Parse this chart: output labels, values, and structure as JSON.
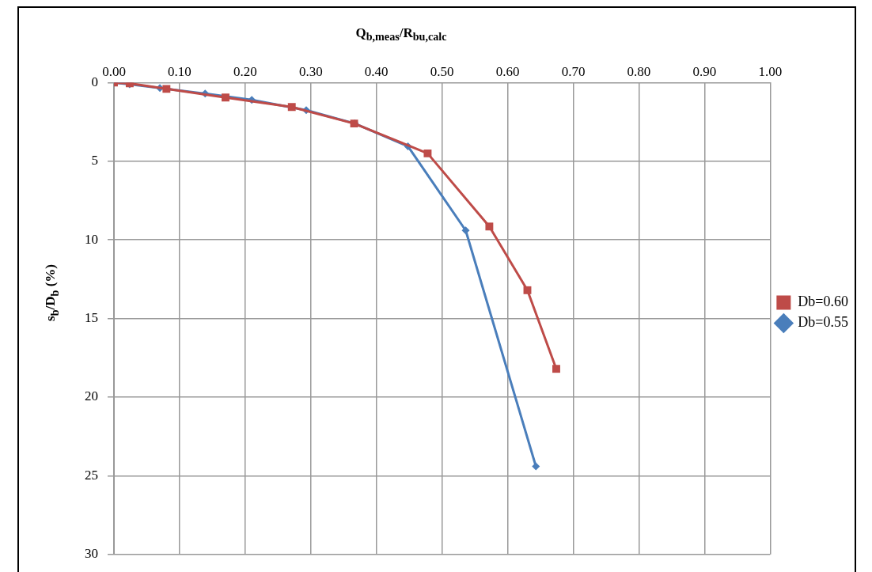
{
  "chart_data": {
    "type": "line",
    "xlabel": "Q$_{b,meas}$/R$_{bu,calc}$",
    "ylabel": "s$_{b}$/D$_{b}$ (%)",
    "xlim": [
      0,
      1
    ],
    "xticks": [
      {
        "value": 0,
        "label": "0.00"
      },
      {
        "value": 0.1,
        "label": "0.10"
      },
      {
        "value": 0.2,
        "label": "0.20"
      },
      {
        "value": 0.3,
        "label": "0.30"
      },
      {
        "value": 0.4,
        "label": "0.40"
      },
      {
        "value": 0.5,
        "label": "0.50"
      },
      {
        "value": 0.6,
        "label": "0.60"
      },
      {
        "value": 0.7,
        "label": "0.70"
      },
      {
        "value": 0.8,
        "label": "0.80"
      },
      {
        "value": 0.9,
        "label": "0.90"
      },
      {
        "value": 1,
        "label": "1.00"
      }
    ],
    "ylim": [
      30,
      0
    ],
    "yticks": [
      0,
      5,
      10,
      15,
      20,
      25,
      30
    ],
    "grid": true,
    "legend": "right",
    "line_style": "solid",
    "series": [
      {
        "name": "Db=0.55",
        "color": "#4a7ebb",
        "marker": "diamond",
        "x": [
          0,
          0.024,
          0.07,
          0.139,
          0.21,
          0.293,
          0.367,
          0.448,
          0.536,
          0.643
        ],
        "values": [
          0,
          0.1,
          0.35,
          0.7,
          1.1,
          1.75,
          2.6,
          4.05,
          9.4,
          24.4
        ]
      },
      {
        "name": "Db=0.60",
        "color": "#be4b48",
        "marker": "square",
        "x": [
          0,
          0.024,
          0.08,
          0.17,
          0.271,
          0.366,
          0.478,
          0.572,
          0.63,
          0.674
        ],
        "values": [
          0,
          0.05,
          0.4,
          0.95,
          1.55,
          2.6,
          4.5,
          9.15,
          13.2,
          18.2
        ]
      }
    ]
  }
}
